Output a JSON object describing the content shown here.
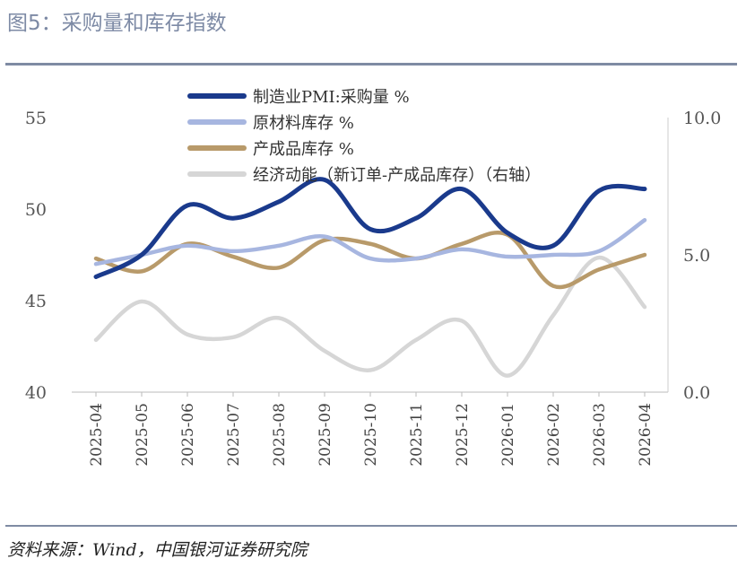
{
  "title": "图5：采购量和库存指数",
  "source": "资料来源：Wind，中国银河证券研究院",
  "chart_data": {
    "type": "line",
    "categories": [
      "2025-04",
      "2025-05",
      "2025-06",
      "2025-07",
      "2025-08",
      "2025-09",
      "2025-10",
      "2025-11",
      "2025-12",
      "2026-01",
      "2026-02",
      "2026-03",
      "2026-04"
    ],
    "ylim": [
      40,
      55
    ],
    "yticks": [
      "40",
      "45",
      "50",
      "55"
    ],
    "y2lim": [
      0,
      10
    ],
    "y2ticks": [
      "0.0",
      "5.0",
      "10.0"
    ],
    "legend_position": "top",
    "series": [
      {
        "name": "制造业PMI:采购量 %",
        "axis": "left",
        "color": "#1a3a8c",
        "values": [
          46.3,
          47.5,
          50.2,
          49.5,
          50.4,
          51.6,
          48.9,
          49.5,
          51.1,
          48.7,
          48.0,
          51.0,
          51.1
        ]
      },
      {
        "name": "原材料库存 %",
        "axis": "left",
        "color": "#a7b6e0",
        "values": [
          47.0,
          47.5,
          48.0,
          47.7,
          48.0,
          48.5,
          47.3,
          47.3,
          47.8,
          47.4,
          47.5,
          47.7,
          49.4
        ]
      },
      {
        "name": "产成品库存 %",
        "axis": "left",
        "color": "#b89a6a",
        "values": [
          47.3,
          46.6,
          48.1,
          47.4,
          46.8,
          48.3,
          48.1,
          47.3,
          48.1,
          48.6,
          45.8,
          46.7,
          47.5
        ]
      },
      {
        "name": "经济动能（新订单-产成品库存）（右轴）",
        "axis": "right",
        "color": "#d6d6d6",
        "values": [
          1.9,
          3.3,
          2.1,
          2.0,
          2.7,
          1.5,
          0.8,
          1.9,
          2.6,
          0.6,
          2.8,
          4.9,
          3.1
        ]
      }
    ]
  }
}
